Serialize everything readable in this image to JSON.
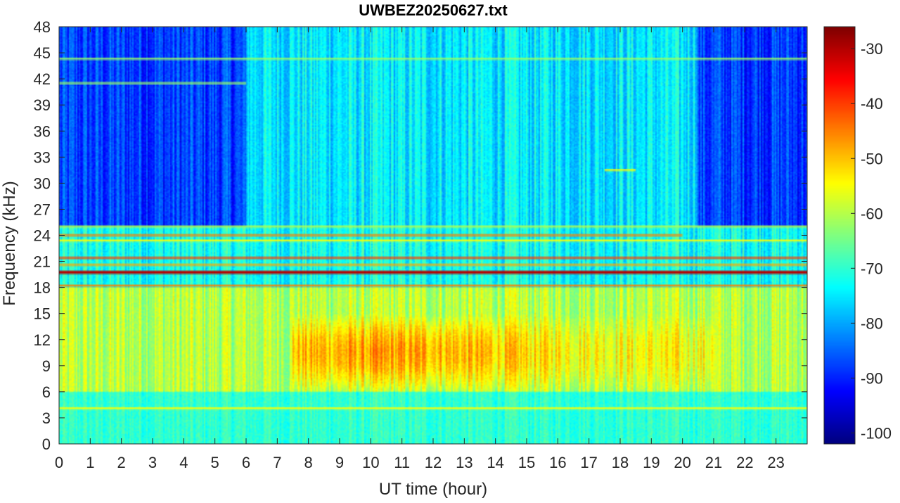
{
  "chart_data": {
    "type": "heatmap",
    "title": "UWBEZ20250627.txt",
    "xlabel": "UT time (hour)",
    "ylabel": "Frequency (kHz)",
    "xlim": [
      0,
      24
    ],
    "ylim": [
      0,
      48
    ],
    "x_ticks": [
      "0",
      "1",
      "2",
      "3",
      "4",
      "5",
      "6",
      "7",
      "8",
      "9",
      "10",
      "11",
      "12",
      "13",
      "14",
      "15",
      "16",
      "17",
      "18",
      "19",
      "20",
      "21",
      "22",
      "23"
    ],
    "y_ticks": [
      "0",
      "3",
      "6",
      "9",
      "12",
      "15",
      "18",
      "21",
      "24",
      "27",
      "30",
      "33",
      "36",
      "39",
      "42",
      "45",
      "48"
    ],
    "colorbar": {
      "colormap": "jet",
      "range": [
        -102,
        -26
      ],
      "ticks": [
        "-30",
        "-40",
        "-50",
        "-60",
        "-70",
        "-80",
        "-90",
        "-100"
      ]
    },
    "grid": false,
    "features": {
      "background_level_db": {
        "low_band_0_to_6_khz": -70,
        "mid_band_6_to_18_khz": -60,
        "high_band_25_to_48_khz_night": -88,
        "high_band_25_to_48_khz_day": -75
      },
      "daytime_enhancement": {
        "hours": [
          7.5,
          21
        ],
        "freq_khz": [
          6,
          15
        ],
        "peak_db": -48,
        "peak_hour": 10.5
      },
      "transmitter_lines": [
        {
          "freq_khz": 19.8,
          "level_db": -30,
          "hours": [
            0,
            24
          ]
        },
        {
          "freq_khz": 21.4,
          "level_db": -40,
          "hours": [
            0,
            24
          ]
        },
        {
          "freq_khz": 18.2,
          "level_db": -45,
          "hours": [
            0,
            24
          ]
        },
        {
          "freq_khz": 24.0,
          "level_db": -45,
          "hours": [
            0,
            20
          ]
        },
        {
          "freq_khz": 23.4,
          "level_db": -55,
          "hours": [
            0,
            24
          ]
        },
        {
          "freq_khz": 20.6,
          "level_db": -48,
          "hours": [
            0,
            24
          ]
        },
        {
          "freq_khz": 25.0,
          "level_db": -60,
          "hours": [
            0,
            24
          ]
        },
        {
          "freq_khz": 4.1,
          "level_db": -55,
          "hours": [
            0,
            24
          ]
        },
        {
          "freq_khz": 44.3,
          "level_db": -62,
          "hours": [
            0,
            24
          ]
        },
        {
          "freq_khz": 41.5,
          "level_db": -62,
          "hours": [
            0,
            6
          ]
        },
        {
          "freq_khz": 31.5,
          "level_db": -55,
          "hours": [
            17.5,
            18.5
          ]
        }
      ],
      "colors": {
        "axis": "#262626",
        "background": "#ffffff"
      }
    }
  }
}
